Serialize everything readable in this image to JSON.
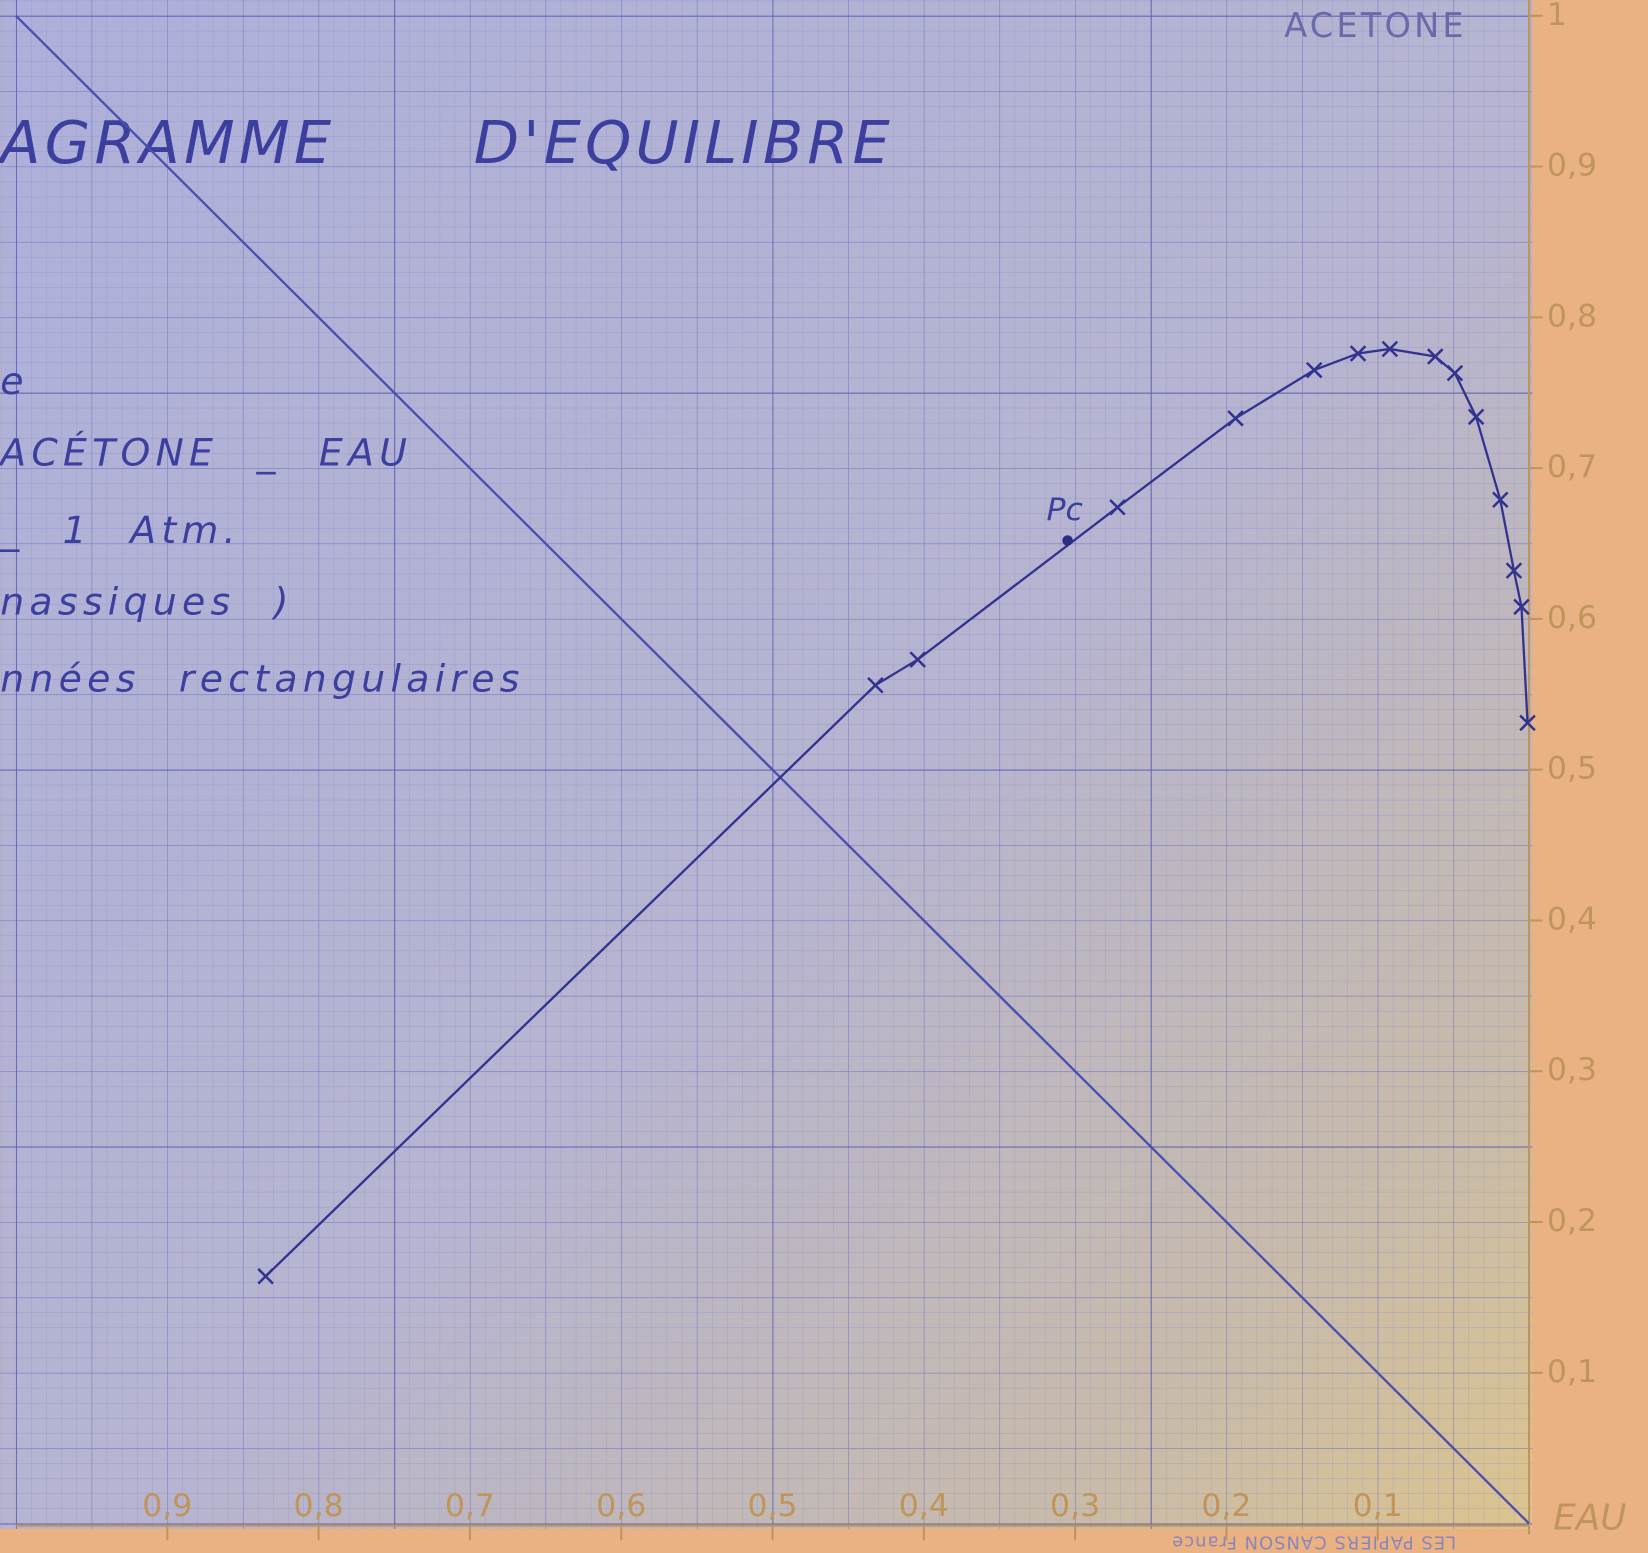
{
  "chart_data": {
    "type": "line",
    "title": "AGRAMME D'EQUILIBRE",
    "annotations": [
      "e",
      "ACÉTONE _ EAU",
      "_ 1 Atm.",
      "nassiques )",
      "nnées rectangulaires"
    ],
    "corner_top": "ACETONE",
    "corner_bottom": "EAU",
    "imprint": "LES PAPIERS CANSON France",
    "xlim": [
      1,
      0
    ],
    "ylim": [
      0,
      1
    ],
    "xticks": [
      {
        "value": 0.9,
        "label": "0,9"
      },
      {
        "value": 0.8,
        "label": "0,8"
      },
      {
        "value": 0.7,
        "label": "0,7"
      },
      {
        "value": 0.6,
        "label": "0,6"
      },
      {
        "value": 0.5,
        "label": "0,5"
      },
      {
        "value": 0.4,
        "label": "0,4"
      },
      {
        "value": 0.3,
        "label": "0,3"
      },
      {
        "value": 0.2,
        "label": "0,2"
      },
      {
        "value": 0.1,
        "label": "0,1"
      }
    ],
    "yticks": [
      {
        "value": 0.1,
        "label": "0,1"
      },
      {
        "value": 0.2,
        "label": "0,2"
      },
      {
        "value": 0.3,
        "label": "0,3"
      },
      {
        "value": 0.4,
        "label": "0,4"
      },
      {
        "value": 0.5,
        "label": "0,5"
      },
      {
        "value": 0.6,
        "label": "0,6"
      },
      {
        "value": 0.7,
        "label": "0,7"
      },
      {
        "value": 0.8,
        "label": "0,8"
      },
      {
        "value": 0.9,
        "label": "0,9"
      },
      1
    ],
    "series": [
      {
        "color": "#4a4fae",
        "x": [
          0,
          1
        ],
        "values": [
          0,
          1
        ]
      },
      {
        "color": "#33338f",
        "marker": "x",
        "x": [
          0.835,
          0.432,
          0.404,
          0.272,
          0.194,
          0.142,
          0.113,
          0.092,
          0.062,
          0.049,
          0.035,
          0.019,
          0.01,
          0.005,
          0.001
        ],
        "values": [
          0.164,
          0.556,
          0.573,
          0.674,
          0.733,
          0.765,
          0.776,
          0.779,
          0.774,
          0.763,
          0.734,
          0.679,
          0.632,
          0.608,
          0.531
        ]
      }
    ],
    "points": [
      {
        "label": "Pc",
        "x": 0.305,
        "y": 0.652
      }
    ]
  }
}
